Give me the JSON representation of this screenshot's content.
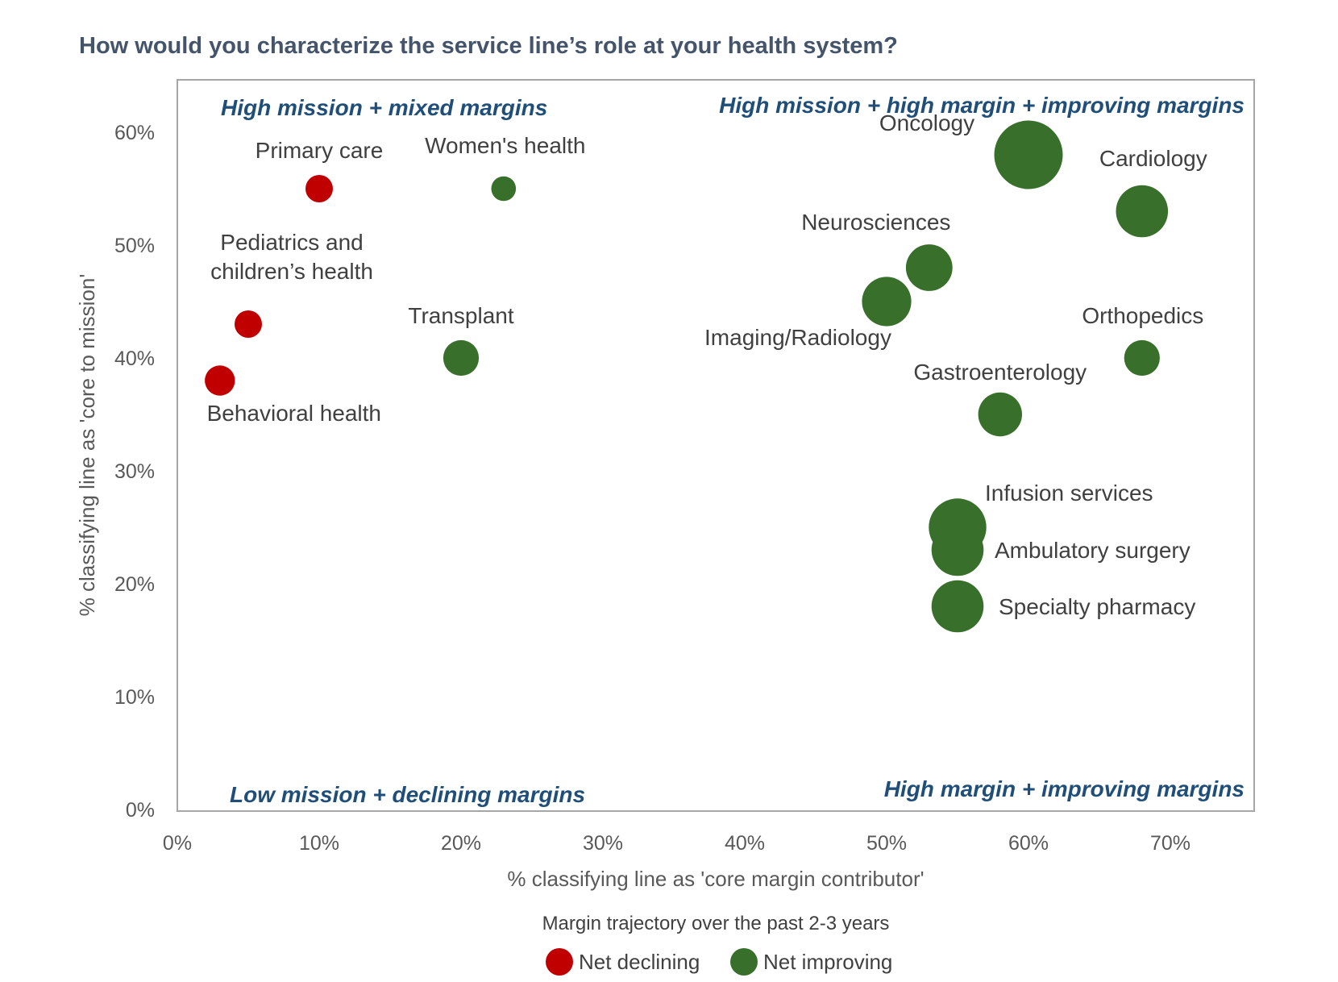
{
  "chart_data": {
    "type": "scatter",
    "title": "How would you characterize the service line’s role at your health system?",
    "xlabel": "% classifying line as 'core margin contributor'",
    "ylabel": "% classifying line as 'core to mission'",
    "xlim": [
      0,
      0.76
    ],
    "ylim": [
      0,
      0.65
    ],
    "x_ticks": [
      {
        "value": 0,
        "label": "0%"
      },
      {
        "value": 0.1,
        "label": "10%"
      },
      {
        "value": 0.2,
        "label": "20%"
      },
      {
        "value": 0.3,
        "label": "30%"
      },
      {
        "value": 0.4,
        "label": "40%"
      },
      {
        "value": 0.5,
        "label": "50%"
      },
      {
        "value": 0.6,
        "label": "60%"
      },
      {
        "value": 0.7,
        "label": "70%"
      }
    ],
    "y_ticks": [
      {
        "value": 0,
        "label": "0%"
      },
      {
        "value": 0.1,
        "label": "10%"
      },
      {
        "value": 0.2,
        "label": "20%"
      },
      {
        "value": 0.3,
        "label": "30%"
      },
      {
        "value": 0.4,
        "label": "40%"
      },
      {
        "value": 0.5,
        "label": "50%"
      },
      {
        "value": 0.6,
        "label": "60%"
      }
    ],
    "grid": false,
    "colors": {
      "Net declining": "#c00000",
      "Net improving": "#38702b"
    },
    "legend": {
      "title": "Margin trajectory over the past 2-3 years",
      "placement": "bottom",
      "entries": [
        "Net declining",
        "Net improving"
      ]
    },
    "quadrant_annotations": [
      "High mission + mixed margins",
      "High mission + high margin + improving margins",
      "Low mission + declining margins",
      "High margin + improving margins"
    ],
    "points": [
      {
        "label_lines": [
          "Primary care"
        ],
        "x": 0.1,
        "y": 0.55,
        "size": 1.0,
        "trajectory": "Net declining"
      },
      {
        "label_lines": [
          "Women's health"
        ],
        "x": 0.23,
        "y": 0.55,
        "size": 0.9,
        "trajectory": "Net improving"
      },
      {
        "label_lines": [
          "Pediatrics and",
          "children’s health"
        ],
        "x": 0.05,
        "y": 0.43,
        "size": 1.0,
        "trajectory": "Net declining"
      },
      {
        "label_lines": [
          "Behavioral health"
        ],
        "x": 0.03,
        "y": 0.38,
        "size": 1.1,
        "trajectory": "Net declining"
      },
      {
        "label_lines": [
          "Transplant"
        ],
        "x": 0.2,
        "y": 0.4,
        "size": 1.3,
        "trajectory": "Net improving"
      },
      {
        "label_lines": [
          "Oncology"
        ],
        "x": 0.6,
        "y": 0.58,
        "size": 2.5,
        "trajectory": "Net improving"
      },
      {
        "label_lines": [
          "Cardiology"
        ],
        "x": 0.68,
        "y": 0.53,
        "size": 1.9,
        "trajectory": "Net improving"
      },
      {
        "label_lines": [
          "Neurosciences"
        ],
        "x": 0.53,
        "y": 0.48,
        "size": 1.7,
        "trajectory": "Net improving"
      },
      {
        "label_lines": [
          "Imaging/Radiology"
        ],
        "x": 0.5,
        "y": 0.45,
        "size": 1.8,
        "trajectory": "Net improving"
      },
      {
        "label_lines": [
          "Orthopedics"
        ],
        "x": 0.68,
        "y": 0.4,
        "size": 1.3,
        "trajectory": "Net improving"
      },
      {
        "label_lines": [
          "Gastroenterology"
        ],
        "x": 0.58,
        "y": 0.35,
        "size": 1.6,
        "trajectory": "Net improving"
      },
      {
        "label_lines": [
          "Infusion services"
        ],
        "x": 0.55,
        "y": 0.25,
        "size": 2.1,
        "trajectory": "Net improving"
      },
      {
        "label_lines": [
          "Ambulatory surgery"
        ],
        "x": 0.55,
        "y": 0.23,
        "size": 1.9,
        "trajectory": "Net improving"
      },
      {
        "label_lines": [
          "Specialty pharmacy"
        ],
        "x": 0.55,
        "y": 0.18,
        "size": 1.9,
        "trajectory": "Net improving"
      }
    ]
  }
}
